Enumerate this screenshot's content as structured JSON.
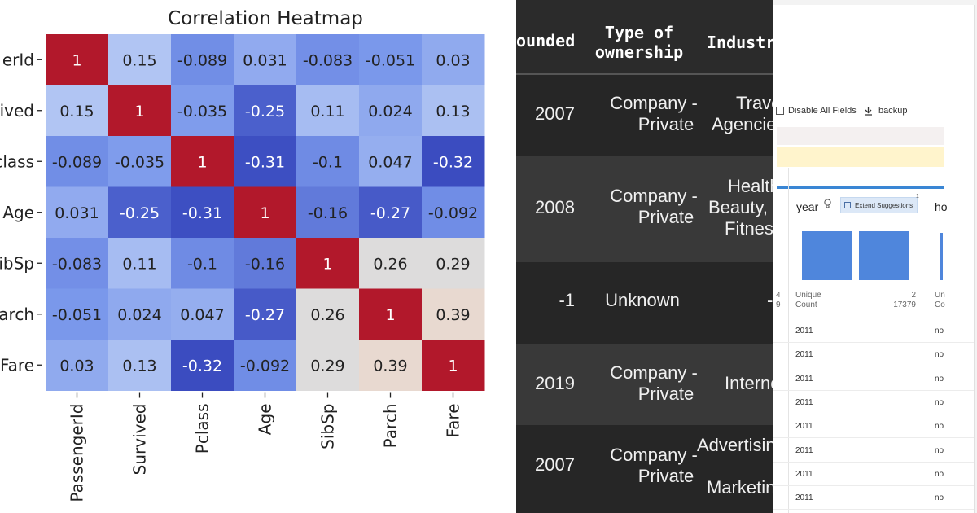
{
  "heatmap": {
    "title": "Correlation Heatmap",
    "row_labels": [
      "erId",
      "ived",
      "class",
      "Age",
      "ibSp",
      "arch",
      "Fare"
    ],
    "col_labels": [
      "PassengerId",
      "Survived",
      "Pclass",
      "Age",
      "SibSp",
      "Parch",
      "Fare"
    ],
    "cells": [
      [
        "1",
        "0.15",
        "-0.089",
        "0.031",
        "-0.083",
        "-0.051",
        "0.03"
      ],
      [
        "0.15",
        "1",
        "-0.035",
        "-0.25",
        "0.11",
        "0.024",
        "0.13"
      ],
      [
        "-0.089",
        "-0.035",
        "1",
        "-0.31",
        "-0.1",
        "0.047",
        "-0.32"
      ],
      [
        "0.031",
        "-0.25",
        "-0.31",
        "1",
        "-0.16",
        "-0.27",
        "-0.092"
      ],
      [
        "-0.083",
        "0.11",
        "-0.1",
        "-0.16",
        "1",
        "0.26",
        "0.29"
      ],
      [
        "-0.051",
        "0.024",
        "0.047",
        "-0.27",
        "0.26",
        "1",
        "0.39"
      ],
      [
        "0.03",
        "0.13",
        "-0.32",
        "-0.092",
        "0.29",
        "0.39",
        "1"
      ]
    ],
    "colors": {
      "one": "#b2182b",
      "strong_neg": "#3b4cc0",
      "pos_mid": "#dddcdc",
      "pos_warm": "#e8d9d0"
    }
  },
  "table": {
    "headers": [
      "ounded",
      "Type of",
      "ownership",
      "Industr"
    ],
    "rows": [
      {
        "founded": "2007",
        "type_l1": "Company -",
        "type_l2": "Private",
        "ind_l1": "Trave",
        "ind_l2": "Agencie",
        "ind_l3": ""
      },
      {
        "founded": "2008",
        "type_l1": "Company -",
        "type_l2": "Private",
        "ind_l1": "Health",
        "ind_l2": "Beauty,",
        "ind_l3": "Fitnes"
      },
      {
        "founded": "-1",
        "type_l1": "Unknown",
        "type_l2": "",
        "ind_l1": "-",
        "ind_l2": "",
        "ind_l3": ""
      },
      {
        "founded": "2019",
        "type_l1": "Company -",
        "type_l2": "Private",
        "ind_l1": "Interne",
        "ind_l2": "",
        "ind_l3": ""
      },
      {
        "founded": "2007",
        "type_l1": "Company -",
        "type_l2": "Private",
        "ind_l1": "Advertisin",
        "ind_l2": "Marketin",
        "ind_l3": ""
      }
    ]
  },
  "profiler": {
    "disable_all": "Disable All Fields",
    "backup": "backup",
    "column_name": "year",
    "extend_label": "Extend Suggestions",
    "extend_count": "1",
    "next_column": "ho",
    "left_edge_1": "4",
    "left_edge_2": "9",
    "unique_label": "Unique",
    "count_label": "Count",
    "unique_value": "2",
    "count_value": "17379",
    "next_unique": "Un",
    "next_count": "Co",
    "bar_values": [
      1,
      1
    ],
    "rows": [
      "2011",
      "2011",
      "2011",
      "2011",
      "2011",
      "2011",
      "2011",
      "2011"
    ],
    "next_values": [
      "no",
      "no",
      "no",
      "no",
      "no",
      "no",
      "no",
      "no"
    ],
    "accent": "#4f86dc"
  }
}
